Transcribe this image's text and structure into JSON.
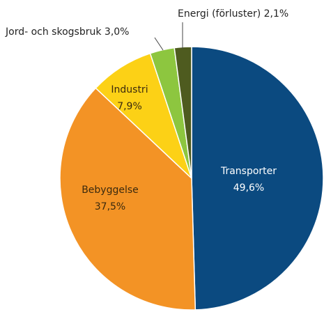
{
  "chart_data": {
    "type": "pie",
    "categories": [
      "Transporter",
      "Bebyggelse",
      "Industri",
      "Jord- och skogsbruk",
      "Energi (förluster)"
    ],
    "values": [
      49.6,
      37.5,
      7.9,
      3.0,
      2.1
    ],
    "value_labels": [
      "49,6%",
      "37,5%",
      "7,9%",
      "3,0%",
      "2,1%"
    ],
    "colors": [
      "#0b4a80",
      "#f39325",
      "#fcd116",
      "#8dc63f",
      "#4e5b1f"
    ]
  }
}
